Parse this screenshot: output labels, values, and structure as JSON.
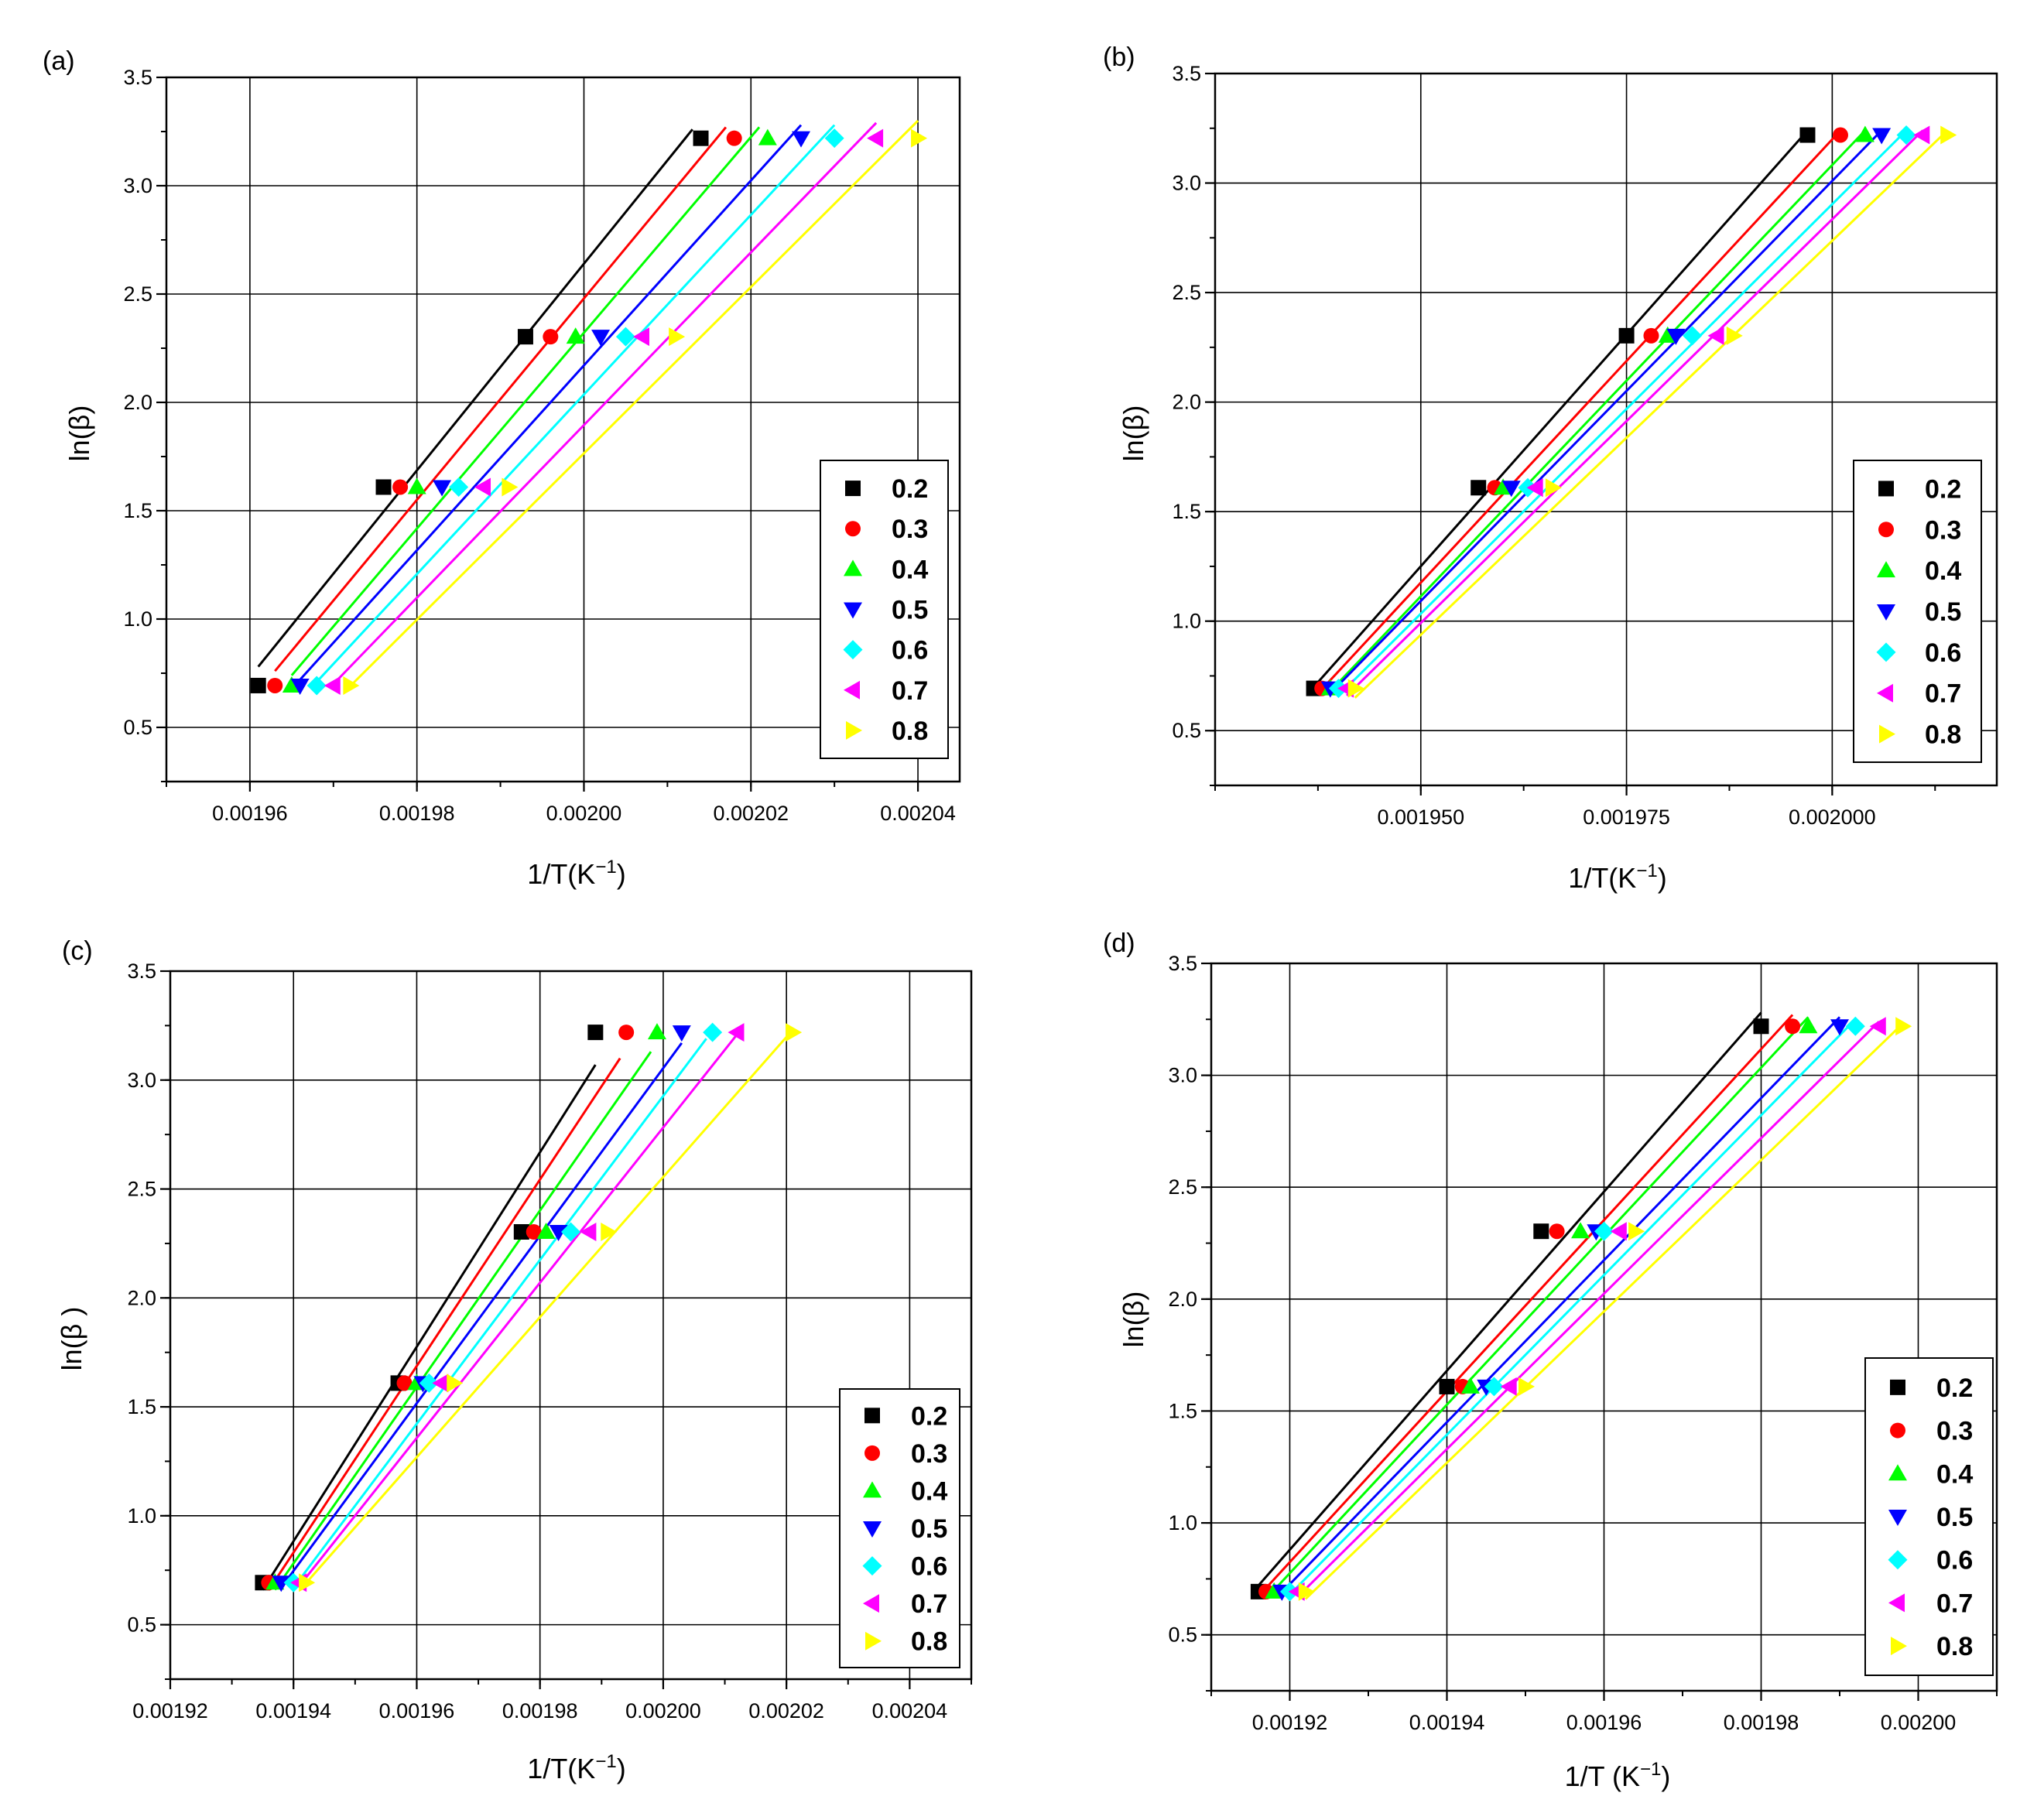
{
  "figure": {
    "background": "#ffffff",
    "series_colors": {
      "0.2": "#000000",
      "0.3": "#ff0000",
      "0.4": "#00ff00",
      "0.5": "#0000ff",
      "0.6": "#00ffff",
      "0.7": "#ff00ff",
      "0.8": "#ffff00"
    },
    "series_markers": {
      "0.2": "square",
      "0.3": "circle",
      "0.4": "triangle-up",
      "0.5": "triangle-down",
      "0.6": "diamond",
      "0.7": "triangle-left",
      "0.8": "triangle-right"
    }
  },
  "chart_data": [
    {
      "type": "scatter",
      "panel_label": "(a)",
      "xlabel": "1/T(K",
      "xlabel_sup": "−1",
      "xlabel_close": ")",
      "ylabel": "ln(β)",
      "xlim": [
        0.00195,
        0.002045
      ],
      "ylim": [
        0.25,
        3.5
      ],
      "x_ticks": [
        0.00196,
        0.00198,
        0.002,
        0.00202,
        0.00204
      ],
      "x_tick_labels": [
        "0.00196",
        "0.00198",
        "0.00200",
        "0.00202",
        "0.00204"
      ],
      "y_ticks": [
        0.5,
        1.0,
        1.5,
        2.0,
        2.5,
        3.0,
        3.5
      ],
      "y_tick_labels": [
        "0.5",
        "1.0",
        "1.5",
        "2.0",
        "2.5",
        "3.0",
        "3.5"
      ],
      "grid": true,
      "legend_position": "right",
      "y": [
        0.693,
        1.609,
        2.303,
        3.219
      ],
      "series": [
        {
          "name": "0.2",
          "x": [
            0.001961,
            0.001976,
            0.001993,
            0.002014
          ],
          "fit": [
            [
              0.001961,
              0.78
            ],
            [
              0.002013,
              3.26
            ]
          ]
        },
        {
          "name": "0.3",
          "x": [
            0.001963,
            0.001978,
            0.001996,
            0.002018
          ],
          "fit": [
            [
              0.001963,
              0.76
            ],
            [
              0.002017,
              3.27
            ]
          ]
        },
        {
          "name": "0.4",
          "x": [
            0.001965,
            0.00198,
            0.001999,
            0.002022
          ],
          "fit": [
            [
              0.001965,
              0.74
            ],
            [
              0.002021,
              3.27
            ]
          ]
        },
        {
          "name": "0.5",
          "x": [
            0.001966,
            0.001983,
            0.002002,
            0.002026
          ],
          "fit": [
            [
              0.001966,
              0.72
            ],
            [
              0.002026,
              3.28
            ]
          ]
        },
        {
          "name": "0.6",
          "x": [
            0.001968,
            0.001985,
            0.002005,
            0.00203
          ],
          "fit": [
            [
              0.001968,
              0.71
            ],
            [
              0.00203,
              3.28
            ]
          ]
        },
        {
          "name": "0.7",
          "x": [
            0.00197,
            0.001988,
            0.002007,
            0.002035
          ],
          "fit": [
            [
              0.00197,
              0.7
            ],
            [
              0.002035,
              3.29
            ]
          ]
        },
        {
          "name": "0.8",
          "x": [
            0.001972,
            0.001991,
            0.002011,
            0.00204
          ],
          "fit": [
            [
              0.001972,
              0.69
            ],
            [
              0.00204,
              3.3
            ]
          ]
        }
      ]
    },
    {
      "type": "scatter",
      "panel_label": "(b)",
      "xlabel": "1/T(K",
      "xlabel_sup": "−1",
      "xlabel_close": ")",
      "ylabel": "ln(β)",
      "xlim": [
        0.001925,
        0.00202
      ],
      "ylim": [
        0.25,
        3.5
      ],
      "x_ticks": [
        0.00195,
        0.001975,
        0.002
      ],
      "x_tick_labels": [
        "0.001950",
        "0.001975",
        "0.002000"
      ],
      "y_ticks": [
        0.5,
        1.0,
        1.5,
        2.0,
        2.5,
        3.0,
        3.5
      ],
      "y_tick_labels": [
        "0.5",
        "1.0",
        "1.5",
        "2.0",
        "2.5",
        "3.0",
        "3.5"
      ],
      "grid": true,
      "legend_position": "right",
      "y": [
        0.693,
        1.609,
        2.303,
        3.219
      ],
      "series": [
        {
          "name": "0.2",
          "x": [
            0.001937,
            0.001957,
            0.001975,
            0.001997
          ],
          "fit": [
            [
              0.001937,
              0.7
            ],
            [
              0.001997,
              3.24
            ]
          ]
        },
        {
          "name": "0.3",
          "x": [
            0.001938,
            0.001959,
            0.001978,
            0.002001
          ],
          "fit": [
            [
              0.001938,
              0.69
            ],
            [
              0.002001,
              3.24
            ]
          ]
        },
        {
          "name": "0.4",
          "x": [
            0.001939,
            0.00196,
            0.00198,
            0.002004
          ],
          "fit": [
            [
              0.001939,
              0.68
            ],
            [
              0.002004,
              3.24
            ]
          ]
        },
        {
          "name": "0.5",
          "x": [
            0.001939,
            0.001961,
            0.001981,
            0.002006
          ],
          "fit": [
            [
              0.001939,
              0.67
            ],
            [
              0.002006,
              3.24
            ]
          ]
        },
        {
          "name": "0.6",
          "x": [
            0.00194,
            0.001963,
            0.001983,
            0.002009
          ],
          "fit": [
            [
              0.00194,
              0.66
            ],
            [
              0.002009,
              3.24
            ]
          ]
        },
        {
          "name": "0.7",
          "x": [
            0.001941,
            0.001964,
            0.001986,
            0.002011
          ],
          "fit": [
            [
              0.001941,
              0.66
            ],
            [
              0.002011,
              3.24
            ]
          ]
        },
        {
          "name": "0.8",
          "x": [
            0.001942,
            0.001966,
            0.001988,
            0.002014
          ],
          "fit": [
            [
              0.001942,
              0.65
            ],
            [
              0.002014,
              3.24
            ]
          ]
        }
      ]
    },
    {
      "type": "scatter",
      "panel_label": "(c)",
      "xlabel": "1/T(K",
      "xlabel_sup": "−1",
      "xlabel_close": ")",
      "ylabel": "ln(β )",
      "xlim": [
        0.00192,
        0.00205
      ],
      "ylim": [
        0.25,
        3.5
      ],
      "x_ticks": [
        0.00192,
        0.00194,
        0.00196,
        0.00198,
        0.002,
        0.00202,
        0.00204
      ],
      "x_tick_labels": [
        "0.00192",
        "0.00194",
        "0.00196",
        "0.00198",
        "0.00200",
        "0.00202",
        "0.00204"
      ],
      "y_ticks": [
        0.5,
        1.0,
        1.5,
        2.0,
        2.5,
        3.0,
        3.5
      ],
      "y_tick_labels": [
        "0.5",
        "1.0",
        "1.5",
        "2.0",
        "2.5",
        "3.0",
        "3.5"
      ],
      "grid": true,
      "legend_position": "bottom-right",
      "y": [
        0.693,
        1.609,
        2.303,
        3.219
      ],
      "series": [
        {
          "name": "0.2",
          "x": [
            0.001935,
            0.001957,
            0.001977,
            0.001989
          ],
          "fit": [
            [
              0.001935,
              0.66
            ],
            [
              0.001989,
              3.07
            ]
          ]
        },
        {
          "name": "0.3",
          "x": [
            0.001936,
            0.001958,
            0.001979,
            0.001994
          ],
          "fit": [
            [
              0.001936,
              0.66
            ],
            [
              0.001993,
              3.1
            ]
          ]
        },
        {
          "name": "0.4",
          "x": [
            0.001937,
            0.00196,
            0.001981,
            0.001999
          ],
          "fit": [
            [
              0.001937,
              0.66
            ],
            [
              0.001998,
              3.13
            ]
          ]
        },
        {
          "name": "0.5",
          "x": [
            0.001938,
            0.001961,
            0.001983,
            0.002003
          ],
          "fit": [
            [
              0.001938,
              0.67
            ],
            [
              0.002003,
              3.17
            ]
          ]
        },
        {
          "name": "0.6",
          "x": [
            0.00194,
            0.001962,
            0.001985,
            0.002008
          ],
          "fit": [
            [
              0.00194,
              0.67
            ],
            [
              0.002007,
              3.19
            ]
          ]
        },
        {
          "name": "0.7",
          "x": [
            0.001941,
            0.001964,
            0.001988,
            0.002012
          ],
          "fit": [
            [
              0.001941,
              0.68
            ],
            [
              0.002012,
              3.21
            ]
          ]
        },
        {
          "name": "0.8",
          "x": [
            0.001942,
            0.001966,
            0.001991,
            0.002021
          ],
          "fit": [
            [
              0.001942,
              0.69
            ],
            [
              0.002021,
              3.23
            ]
          ]
        }
      ]
    },
    {
      "type": "scatter",
      "panel_label": "(d)",
      "xlabel": "1/T (K",
      "xlabel_sup": "−1",
      "xlabel_close": ")",
      "ylabel": "ln(β)",
      "xlim": [
        0.00191,
        0.00201
      ],
      "ylim": [
        0.25,
        3.5
      ],
      "x_ticks": [
        0.00192,
        0.00194,
        0.00196,
        0.00198,
        0.002
      ],
      "x_tick_labels": [
        "0.00192",
        "0.00194",
        "0.00196",
        "0.00198",
        "0.00200"
      ],
      "y_ticks": [
        0.5,
        1.0,
        1.5,
        2.0,
        2.5,
        3.0,
        3.5
      ],
      "y_tick_labels": [
        "0.5",
        "1.0",
        "1.5",
        "2.0",
        "2.5",
        "3.0",
        "3.5"
      ],
      "grid": true,
      "legend_position": "bottom-right",
      "y": [
        0.693,
        1.609,
        2.303,
        3.219
      ],
      "series": [
        {
          "name": "0.2",
          "x": [
            0.001916,
            0.00194,
            0.001952,
            0.00198
          ],
          "fit": [
            [
              0.001916,
              0.72
            ],
            [
              0.00198,
              3.28
            ]
          ]
        },
        {
          "name": "0.3",
          "x": [
            0.001917,
            0.001942,
            0.001954,
            0.001984
          ],
          "fit": [
            [
              0.001917,
              0.71
            ],
            [
              0.001984,
              3.27
            ]
          ]
        },
        {
          "name": "0.4",
          "x": [
            0.001918,
            0.001943,
            0.001957,
            0.001986
          ],
          "fit": [
            [
              0.001918,
              0.7
            ],
            [
              0.001986,
              3.26
            ]
          ]
        },
        {
          "name": "0.5",
          "x": [
            0.001919,
            0.001945,
            0.001959,
            0.00199
          ],
          "fit": [
            [
              0.001919,
              0.69
            ],
            [
              0.00199,
              3.26
            ]
          ]
        },
        {
          "name": "0.6",
          "x": [
            0.00192,
            0.001946,
            0.00196,
            0.001992
          ],
          "fit": [
            [
              0.00192,
              0.68
            ],
            [
              0.001992,
              3.25
            ]
          ]
        },
        {
          "name": "0.7",
          "x": [
            0.001921,
            0.001948,
            0.001962,
            0.001995
          ],
          "fit": [
            [
              0.001921,
              0.67
            ],
            [
              0.001995,
              3.24
            ]
          ]
        },
        {
          "name": "0.8",
          "x": [
            0.001922,
            0.00195,
            0.001964,
            0.001998
          ],
          "fit": [
            [
              0.001922,
              0.66
            ],
            [
              0.001998,
              3.23
            ]
          ]
        }
      ]
    }
  ]
}
